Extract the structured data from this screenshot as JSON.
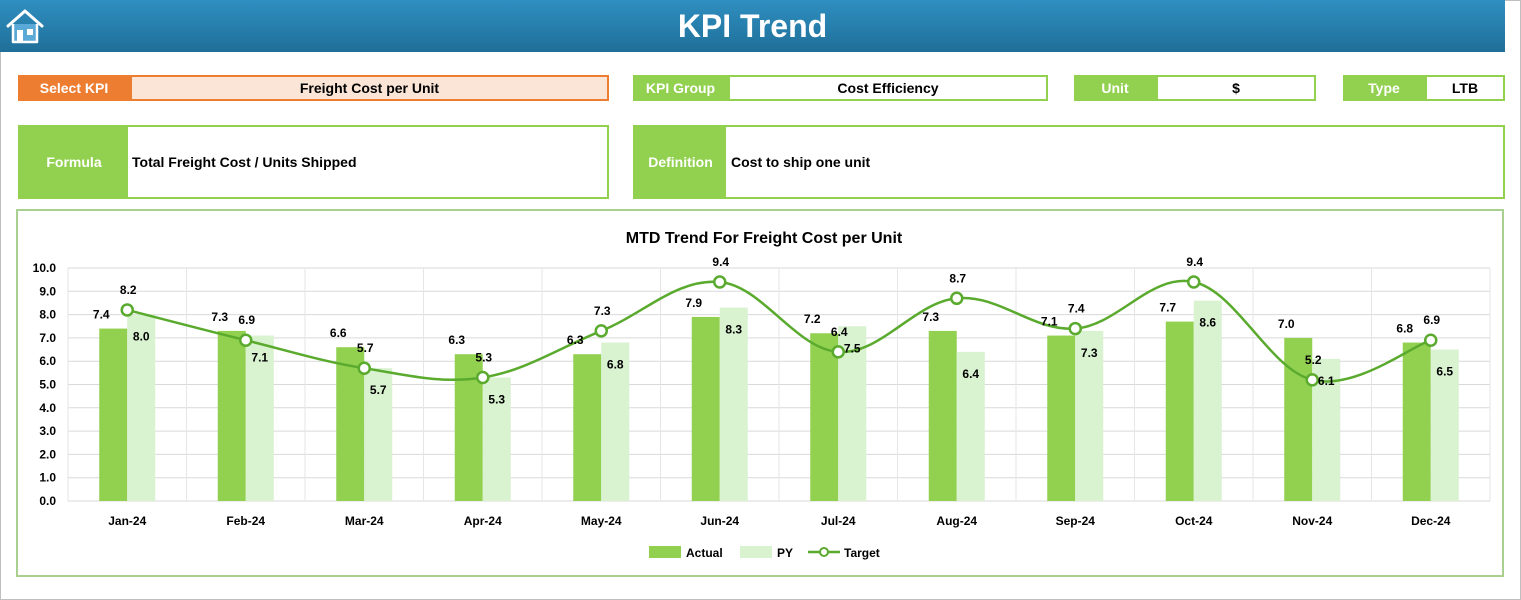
{
  "header": {
    "title": "KPI Trend"
  },
  "fields": {
    "select_kpi_label": "Select KPI",
    "select_kpi_value": "Freight Cost per Unit",
    "kpi_group_label": "KPI Group",
    "kpi_group_value": "Cost Efficiency",
    "unit_label": "Unit",
    "unit_value": "$",
    "type_label": "Type",
    "type_value": "LTB",
    "formula_label": "Formula",
    "formula_value": "Total Freight Cost / Units Shipped",
    "definition_label": "Definition",
    "definition_value": "Cost to ship one unit"
  },
  "colors": {
    "header": "#1f6f99",
    "accent_green": "#92d050",
    "accent_orange": "#ed7d31",
    "actual": "#92d050",
    "py": "#d9f2d0",
    "target": "#5aaa2e"
  },
  "chart_data": {
    "type": "bar",
    "title": "MTD Trend For Freight Cost per Unit",
    "categories": [
      "Jan-24",
      "Feb-24",
      "Mar-24",
      "Apr-24",
      "May-24",
      "Jun-24",
      "Jul-24",
      "Aug-24",
      "Sep-24",
      "Oct-24",
      "Nov-24",
      "Dec-24"
    ],
    "series": [
      {
        "name": "Actual",
        "type": "bar",
        "values": [
          7.4,
          7.3,
          6.6,
          6.3,
          6.3,
          7.9,
          7.2,
          7.3,
          7.1,
          7.7,
          7.0,
          6.8
        ]
      },
      {
        "name": "PY",
        "type": "bar",
        "values": [
          8.0,
          7.1,
          5.7,
          5.3,
          6.8,
          8.3,
          7.5,
          6.4,
          7.3,
          8.6,
          6.1,
          6.5
        ]
      },
      {
        "name": "Target",
        "type": "line",
        "values": [
          8.2,
          6.9,
          5.7,
          5.3,
          7.3,
          9.4,
          6.4,
          8.7,
          7.4,
          9.4,
          5.2,
          6.9
        ]
      }
    ],
    "yticks": [
      "0.0",
      "1.0",
      "2.0",
      "3.0",
      "4.0",
      "5.0",
      "6.0",
      "7.0",
      "8.0",
      "9.0",
      "10.0"
    ],
    "ylim": [
      0,
      10
    ],
    "grid": true,
    "legend_position": "bottom"
  }
}
